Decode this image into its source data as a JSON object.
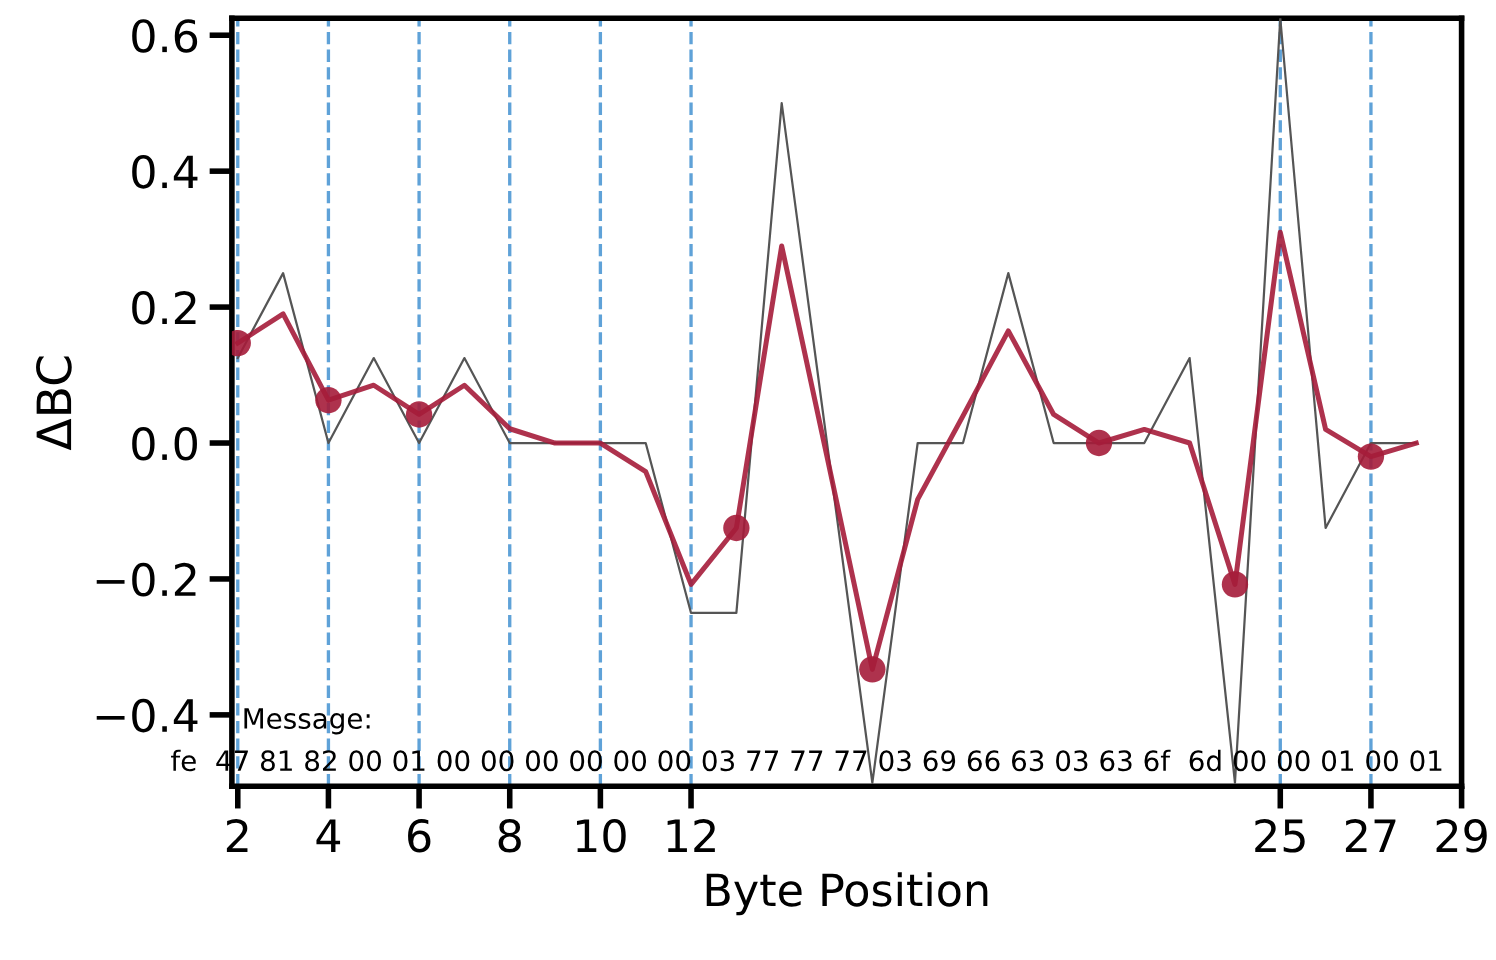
{
  "chart_data": {
    "type": "line",
    "xlabel": "Byte Position",
    "ylabel": "ΔBC",
    "x": [
      2,
      3,
      4,
      5,
      6,
      7,
      8,
      9,
      10,
      11,
      12,
      13,
      14,
      15,
      16,
      17,
      18,
      19,
      20,
      21,
      22,
      23,
      24,
      25,
      26,
      27,
      28
    ],
    "xlim": [
      1.87,
      29
    ],
    "xticks": [
      2,
      4,
      6,
      8,
      10,
      12,
      25,
      27,
      29
    ],
    "ylim": [
      -0.505,
      0.625
    ],
    "yticks": [
      {
        "value": -0.4,
        "label": "−0.4"
      },
      {
        "value": -0.2,
        "label": "−0.2"
      },
      {
        "value": 0,
        "label": "0.0"
      },
      {
        "value": 0.2,
        "label": "0.2"
      },
      {
        "value": 0.4,
        "label": "0.4"
      },
      {
        "value": 0.6,
        "label": "0.6"
      }
    ],
    "series": [
      {
        "color": "#555555",
        "values": [
          0.125,
          0.25,
          0,
          0.125,
          0,
          0.125,
          0,
          0,
          0,
          0,
          -0.25,
          -0.25,
          0.5,
          0,
          -0.5,
          0,
          0,
          0.25,
          0,
          0,
          0,
          0.125,
          -0.5,
          0.625,
          -0.125,
          0,
          0
        ]
      },
      {
        "color": "#a51c3a",
        "values": [
          0.147,
          0.19,
          0.063,
          0.085,
          0.042,
          0.085,
          0.021,
          0,
          0,
          -0.042,
          -0.208,
          -0.125,
          0.29,
          -0.02,
          -0.333,
          -0.083,
          0.04,
          0.165,
          0.042,
          0,
          0.02,
          0,
          -0.208,
          0.31,
          0.02,
          -0.02,
          0
        ]
      },
      {
        "type": "scatter",
        "color": "#a51c3a",
        "marker": "circle",
        "x": [
          2,
          4,
          6,
          13,
          16,
          21,
          24,
          27
        ],
        "values": [
          0.147,
          0.063,
          0.042,
          -0.125,
          -0.333,
          0,
          -0.208,
          -0.02
        ]
      }
    ],
    "ref_lines": [
      {
        "axis": "x",
        "value": 2,
        "color": "#5fa2d8",
        "line_style": "dashed"
      },
      {
        "axis": "x",
        "value": 4,
        "color": "#5fa2d8",
        "line_style": "dashed"
      },
      {
        "axis": "x",
        "value": 6,
        "color": "#5fa2d8",
        "line_style": "dashed"
      },
      {
        "axis": "x",
        "value": 8,
        "color": "#5fa2d8",
        "line_style": "dashed"
      },
      {
        "axis": "x",
        "value": 10,
        "color": "#5fa2d8",
        "line_style": "dashed"
      },
      {
        "axis": "x",
        "value": 12,
        "color": "#5fa2d8",
        "line_style": "dashed"
      },
      {
        "axis": "x",
        "value": 25,
        "color": "#5fa2d8",
        "line_style": "dashed"
      },
      {
        "axis": "x",
        "value": 27,
        "color": "#5fa2d8",
        "line_style": "dashed"
      }
    ],
    "annotations": [
      "Message:",
      "fe  47 81 82 00 01 00 00 00 00 00 00 03 77 77 77 03 69 66 63 03 63 6f  6d 00 00 01 00 01"
    ]
  }
}
